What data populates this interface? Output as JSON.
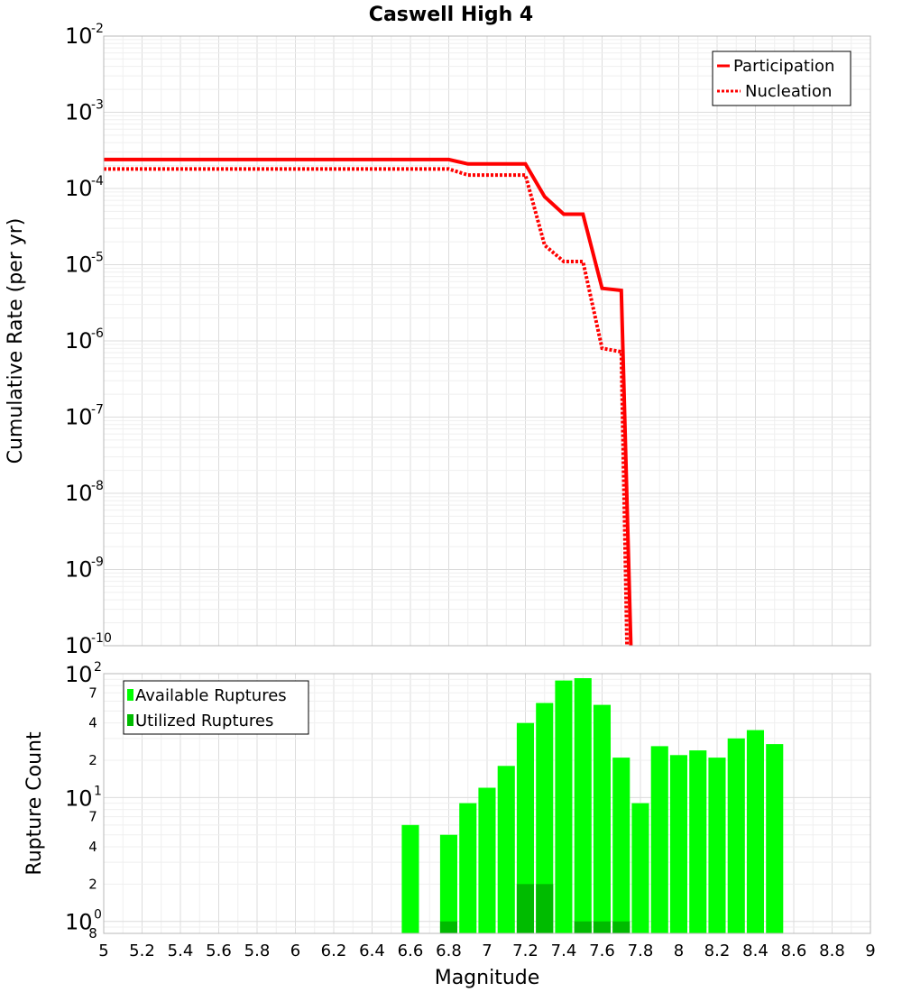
{
  "chart_data": [
    {
      "type": "line",
      "title": "Caswell High 4",
      "xlabel": "",
      "ylabel": "Cumulative Rate (per yr)",
      "yscale": "log",
      "xlim": [
        5,
        9
      ],
      "ylim": [
        1e-10,
        0.01
      ],
      "y_major_ticks": [
        {
          "base": "10",
          "exp": "-2"
        },
        {
          "base": "10",
          "exp": "-3"
        },
        {
          "base": "10",
          "exp": "-4"
        },
        {
          "base": "10",
          "exp": "-5"
        },
        {
          "base": "10",
          "exp": "-6"
        },
        {
          "base": "10",
          "exp": "-7"
        },
        {
          "base": "10",
          "exp": "-8"
        },
        {
          "base": "10",
          "exp": "-9"
        },
        {
          "base": "10",
          "exp": "-10"
        }
      ],
      "grid": true,
      "legend_position": "top-right",
      "series": [
        {
          "name": "Participation",
          "style": "solid",
          "color": "#ff0000",
          "x": [
            5.0,
            6.8,
            6.9,
            7.2,
            7.3,
            7.4,
            7.5,
            7.6,
            7.7,
            7.75
          ],
          "y": [
            0.00024,
            0.00024,
            0.00021,
            0.00021,
            7.8e-05,
            4.6e-05,
            4.6e-05,
            4.9e-06,
            4.6e-06,
            1e-10
          ]
        },
        {
          "name": "Nucleation",
          "style": "dotted",
          "color": "#ff0000",
          "x": [
            5.0,
            6.8,
            6.9,
            7.2,
            7.3,
            7.4,
            7.5,
            7.6,
            7.7,
            7.73
          ],
          "y": [
            0.00018,
            0.00018,
            0.00015,
            0.00015,
            1.8e-05,
            1.1e-05,
            1.1e-05,
            8e-07,
            7.2e-07,
            1e-10
          ]
        }
      ]
    },
    {
      "type": "bar",
      "title": "",
      "xlabel": "Magnitude",
      "ylabel": "Rupture Count",
      "yscale": "log",
      "xlim": [
        5,
        9
      ],
      "ylim": [
        0.8,
        100
      ],
      "x_ticks": [
        "5",
        "5.2",
        "5.4",
        "5.6",
        "5.8",
        "6",
        "6.2",
        "6.4",
        "6.6",
        "6.8",
        "7",
        "7.2",
        "7.4",
        "7.6",
        "7.8",
        "8",
        "8.2",
        "8.4",
        "8.6",
        "8.8",
        "9"
      ],
      "y_major_ticks": [
        {
          "base": "10",
          "exp": "2",
          "value": 100
        },
        {
          "base": "10",
          "exp": "1",
          "value": 10
        },
        {
          "base": "10",
          "exp": "0",
          "value": 1
        }
      ],
      "y_minor_ticks": [
        {
          "label": "7",
          "value": 70
        },
        {
          "label": "4",
          "value": 40
        },
        {
          "label": "2",
          "value": 20
        },
        {
          "label": "7",
          "value": 7
        },
        {
          "label": "4",
          "value": 4
        },
        {
          "label": "2",
          "value": 2
        },
        {
          "label": "8",
          "value": 0.8
        }
      ],
      "grid": true,
      "legend_position": "top-left",
      "bar_width": 0.09,
      "series": [
        {
          "name": "Available Ruptures",
          "color": "#00ff00",
          "x": [
            6.6,
            6.8,
            6.9,
            7.0,
            7.1,
            7.2,
            7.3,
            7.4,
            7.5,
            7.6,
            7.7,
            7.8,
            7.9,
            8.0,
            8.1,
            8.2,
            8.3,
            8.4,
            8.5
          ],
          "values": [
            6,
            5,
            9,
            12,
            18,
            40,
            58,
            88,
            92,
            56,
            21,
            9,
            26,
            22,
            24,
            21,
            30,
            35,
            27
          ]
        },
        {
          "name": "Utilized Ruptures",
          "color": "#00bb00",
          "x": [
            6.8,
            7.2,
            7.3,
            7.5,
            7.6,
            7.7
          ],
          "values": [
            1,
            2,
            2,
            1,
            1,
            1
          ]
        }
      ]
    }
  ]
}
